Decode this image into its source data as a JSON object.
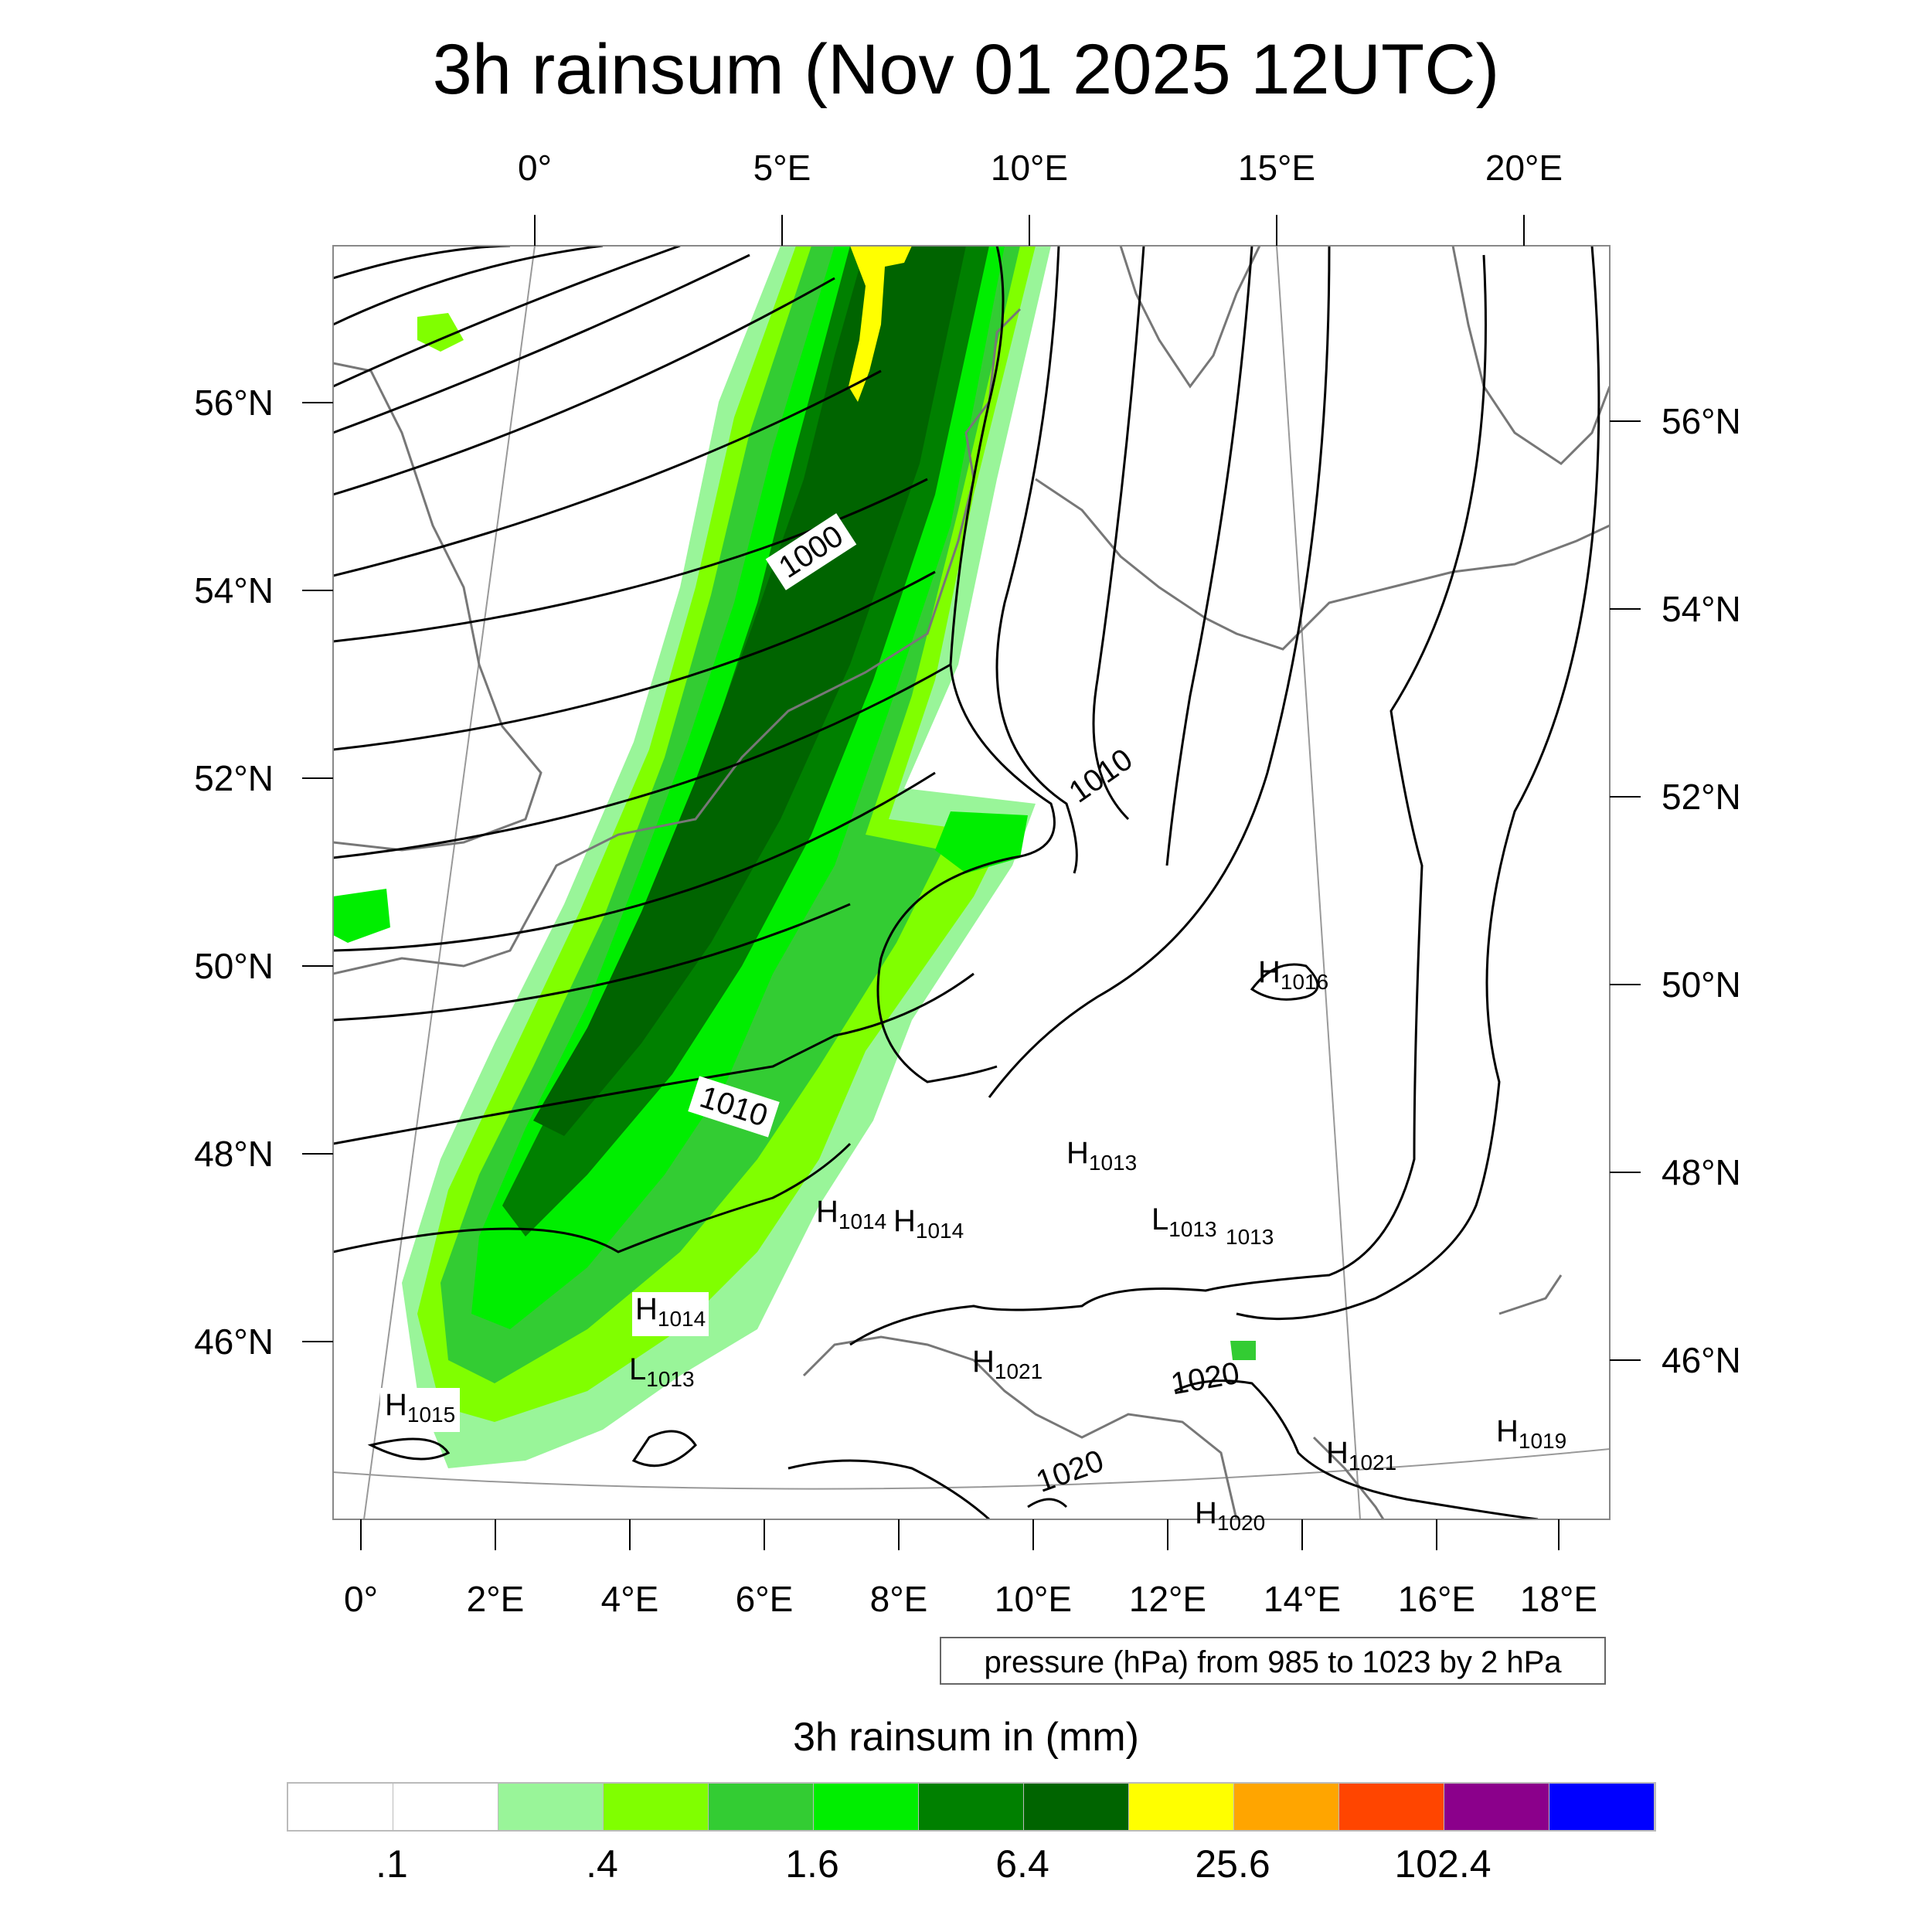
{
  "title": "3h rainsum (Nov 01 2025 12UTC)",
  "top_lon_labels": [
    "0°",
    "5°E",
    "10°E",
    "15°E",
    "20°E"
  ],
  "bottom_lon_labels": [
    "0°",
    "2°E",
    "4°E",
    "6°E",
    "8°E",
    "10°E",
    "12°E",
    "14°E",
    "16°E",
    "18°E"
  ],
  "left_lat_labels": [
    "56°N",
    "54°N",
    "52°N",
    "50°N",
    "48°N",
    "46°N"
  ],
  "right_lat_labels": [
    "56°N",
    "54°N",
    "52°N",
    "50°N",
    "48°N",
    "46°N"
  ],
  "contour_labels": [
    "1000",
    "1010",
    "1010",
    "1020",
    "1020"
  ],
  "pressure_centers": [
    {
      "letter": "H",
      "value": "1016"
    },
    {
      "letter": "H",
      "value": "1013"
    },
    {
      "letter": "H",
      "value": "1014"
    },
    {
      "letter": "H",
      "value": "1014"
    },
    {
      "letter": "L",
      "value": "1013"
    },
    {
      "letter": "",
      "value": "1013"
    },
    {
      "letter": "H",
      "value": "1014"
    },
    {
      "letter": "L",
      "value": "1013"
    },
    {
      "letter": "H",
      "value": "1015"
    },
    {
      "letter": "H",
      "value": "1021"
    },
    {
      "letter": "H",
      "value": "1021"
    },
    {
      "letter": "H",
      "value": "1019"
    },
    {
      "letter": "H",
      "value": "1020"
    }
  ],
  "info_label": "pressure (hPa) from 985 to 1023 by 2 hPa",
  "colorbar": {
    "title": "3h rainsum in (mm)",
    "colors": [
      "#ffffff",
      "#ffffff",
      "#99f599",
      "#80ff00",
      "#33cc33",
      "#00ee00",
      "#008000",
      "#006400",
      "#ffff00",
      "#ffa500",
      "#ff4500",
      "#8b008b",
      "#0000ff"
    ],
    "tick_labels": [
      ".1",
      ".4",
      "1.6",
      "6.4",
      "25.6",
      "102.4"
    ]
  },
  "chart_data": {
    "type": "heatmap",
    "title": "3h rainsum (Nov 01 2025 12UTC)",
    "variable": "3h rainsum in (mm)",
    "contour_variable": "pressure (hPa)",
    "contour_range_hpa": [
      985,
      1023
    ],
    "contour_interval_hpa": 2,
    "colorbar_levels_mm": [
      0.1,
      0.2,
      0.4,
      0.8,
      1.6,
      3.2,
      6.4,
      12.8,
      25.6,
      51.2,
      102.4,
      204.8
    ],
    "lon_range": [
      -0.5,
      18.7
    ],
    "lat_range": [
      44.5,
      57.6
    ],
    "grid": true
  }
}
